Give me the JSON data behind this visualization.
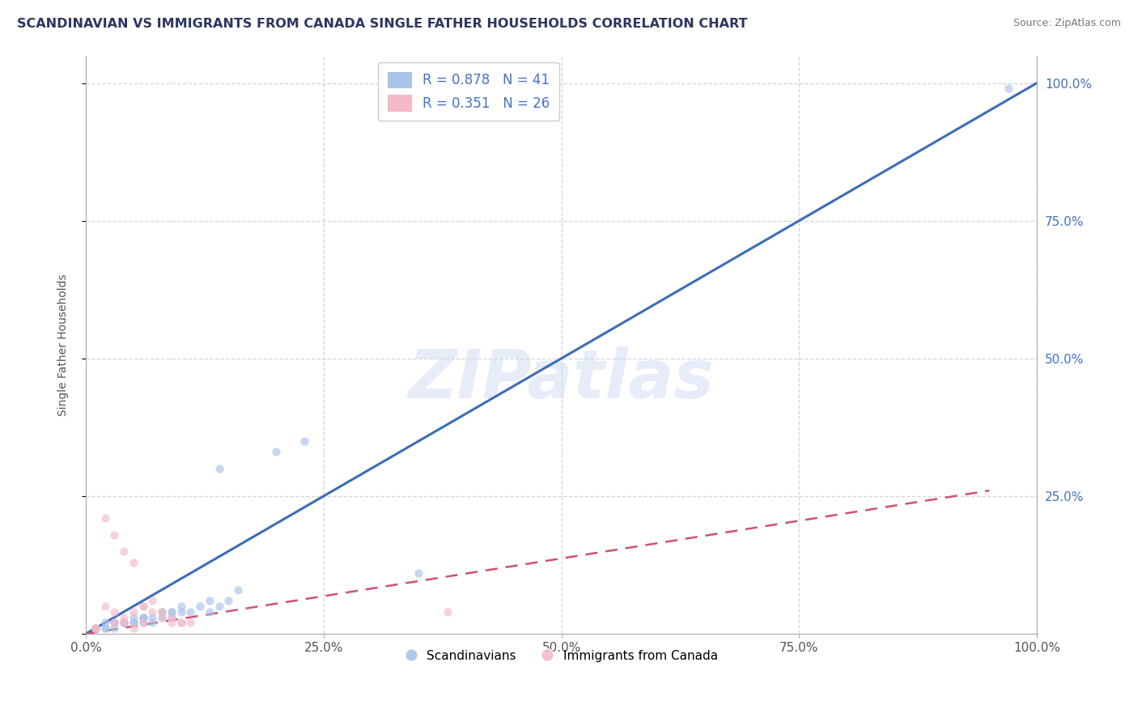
{
  "title": "SCANDINAVIAN VS IMMIGRANTS FROM CANADA SINGLE FATHER HOUSEHOLDS CORRELATION CHART",
  "source": "Source: ZipAtlas.com",
  "ylabel": "Single Father Households",
  "blue_R": 0.878,
  "blue_N": 41,
  "pink_R": 0.351,
  "pink_N": 26,
  "blue_dot_color": "#a8c4e8",
  "pink_dot_color": "#f5b8c8",
  "blue_line_color": "#3d6db5",
  "pink_line_color": "#d05070",
  "watermark": "ZIPatlas",
  "xlim": [
    0,
    1.0
  ],
  "ylim": [
    0,
    1.05
  ],
  "xtick_positions": [
    0.0,
    0.25,
    0.5,
    0.75,
    1.0
  ],
  "ytick_positions": [
    0.0,
    0.25,
    0.5,
    0.75,
    1.0
  ],
  "right_ytick_labels": [
    "",
    "25.0%",
    "50.0%",
    "75.0%",
    "100.0%"
  ],
  "xtick_labels": [
    "0.0%",
    "25.0%",
    "50.0%",
    "75.0%",
    "100.0%"
  ],
  "blue_scatter_x": [
    0.97,
    0.14,
    0.2,
    0.23,
    0.1,
    0.12,
    0.13,
    0.09,
    0.08,
    0.07,
    0.06,
    0.05,
    0.04,
    0.03,
    0.02,
    0.01,
    0.13,
    0.14,
    0.15,
    0.16,
    0.06,
    0.07,
    0.08,
    0.04,
    0.05,
    0.06,
    0.1,
    0.11,
    0.09,
    0.03,
    0.03,
    0.02,
    0.01,
    0.02,
    0.01,
    0.04,
    0.05,
    0.06,
    0.08,
    0.09,
    0.35
  ],
  "blue_scatter_y": [
    0.99,
    0.3,
    0.33,
    0.35,
    0.05,
    0.05,
    0.06,
    0.04,
    0.04,
    0.03,
    0.03,
    0.03,
    0.02,
    0.02,
    0.02,
    0.01,
    0.04,
    0.05,
    0.06,
    0.08,
    0.02,
    0.02,
    0.04,
    0.02,
    0.02,
    0.03,
    0.04,
    0.04,
    0.03,
    0.01,
    0.02,
    0.01,
    0.01,
    0.01,
    0.01,
    0.02,
    0.02,
    0.03,
    0.03,
    0.04,
    0.11
  ],
  "pink_scatter_x": [
    0.01,
    0.02,
    0.03,
    0.04,
    0.05,
    0.06,
    0.07,
    0.08,
    0.09,
    0.1,
    0.02,
    0.03,
    0.04,
    0.05,
    0.06,
    0.07,
    0.08,
    0.09,
    0.1,
    0.11,
    0.03,
    0.04,
    0.05,
    0.06,
    0.38,
    0.01
  ],
  "pink_scatter_y": [
    0.01,
    0.05,
    0.04,
    0.03,
    0.04,
    0.05,
    0.06,
    0.04,
    0.03,
    0.02,
    0.21,
    0.18,
    0.15,
    0.13,
    0.05,
    0.04,
    0.03,
    0.02,
    0.02,
    0.02,
    0.02,
    0.02,
    0.01,
    0.02,
    0.04,
    0.01
  ],
  "blue_line_x": [
    0.0,
    1.0
  ],
  "blue_line_y": [
    0.0,
    1.0
  ],
  "pink_line_x": [
    0.0,
    0.95
  ],
  "pink_line_y": [
    0.0,
    0.26
  ],
  "grid_color": "#cccccc",
  "background_color": "#ffffff",
  "scatter_alpha": 0.65,
  "scatter_size": 55,
  "title_color": "#2d3561",
  "right_axis_color": "#4472c4",
  "legend_scandinavian": "Scandinavians",
  "legend_canada": "Immigrants from Canada"
}
